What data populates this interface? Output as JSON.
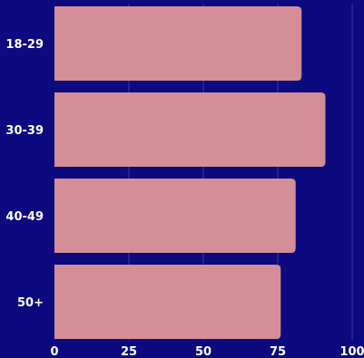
{
  "chart_data": {
    "type": "bar",
    "orientation": "horizontal",
    "categories": [
      "18-29",
      "30-39",
      "40-49",
      "50+"
    ],
    "values": [
      83,
      91,
      81,
      76
    ],
    "xlim": [
      0,
      100
    ],
    "xticks": [
      "0",
      "25",
      "50",
      "75",
      "100"
    ],
    "title": "",
    "xlabel": "",
    "ylabel": "",
    "grid": true,
    "legend": "none"
  },
  "colors": {
    "background": "#0c0a7e",
    "bar": "#d38e97",
    "grid": "#3a3aa0",
    "text": "#ffffff"
  }
}
